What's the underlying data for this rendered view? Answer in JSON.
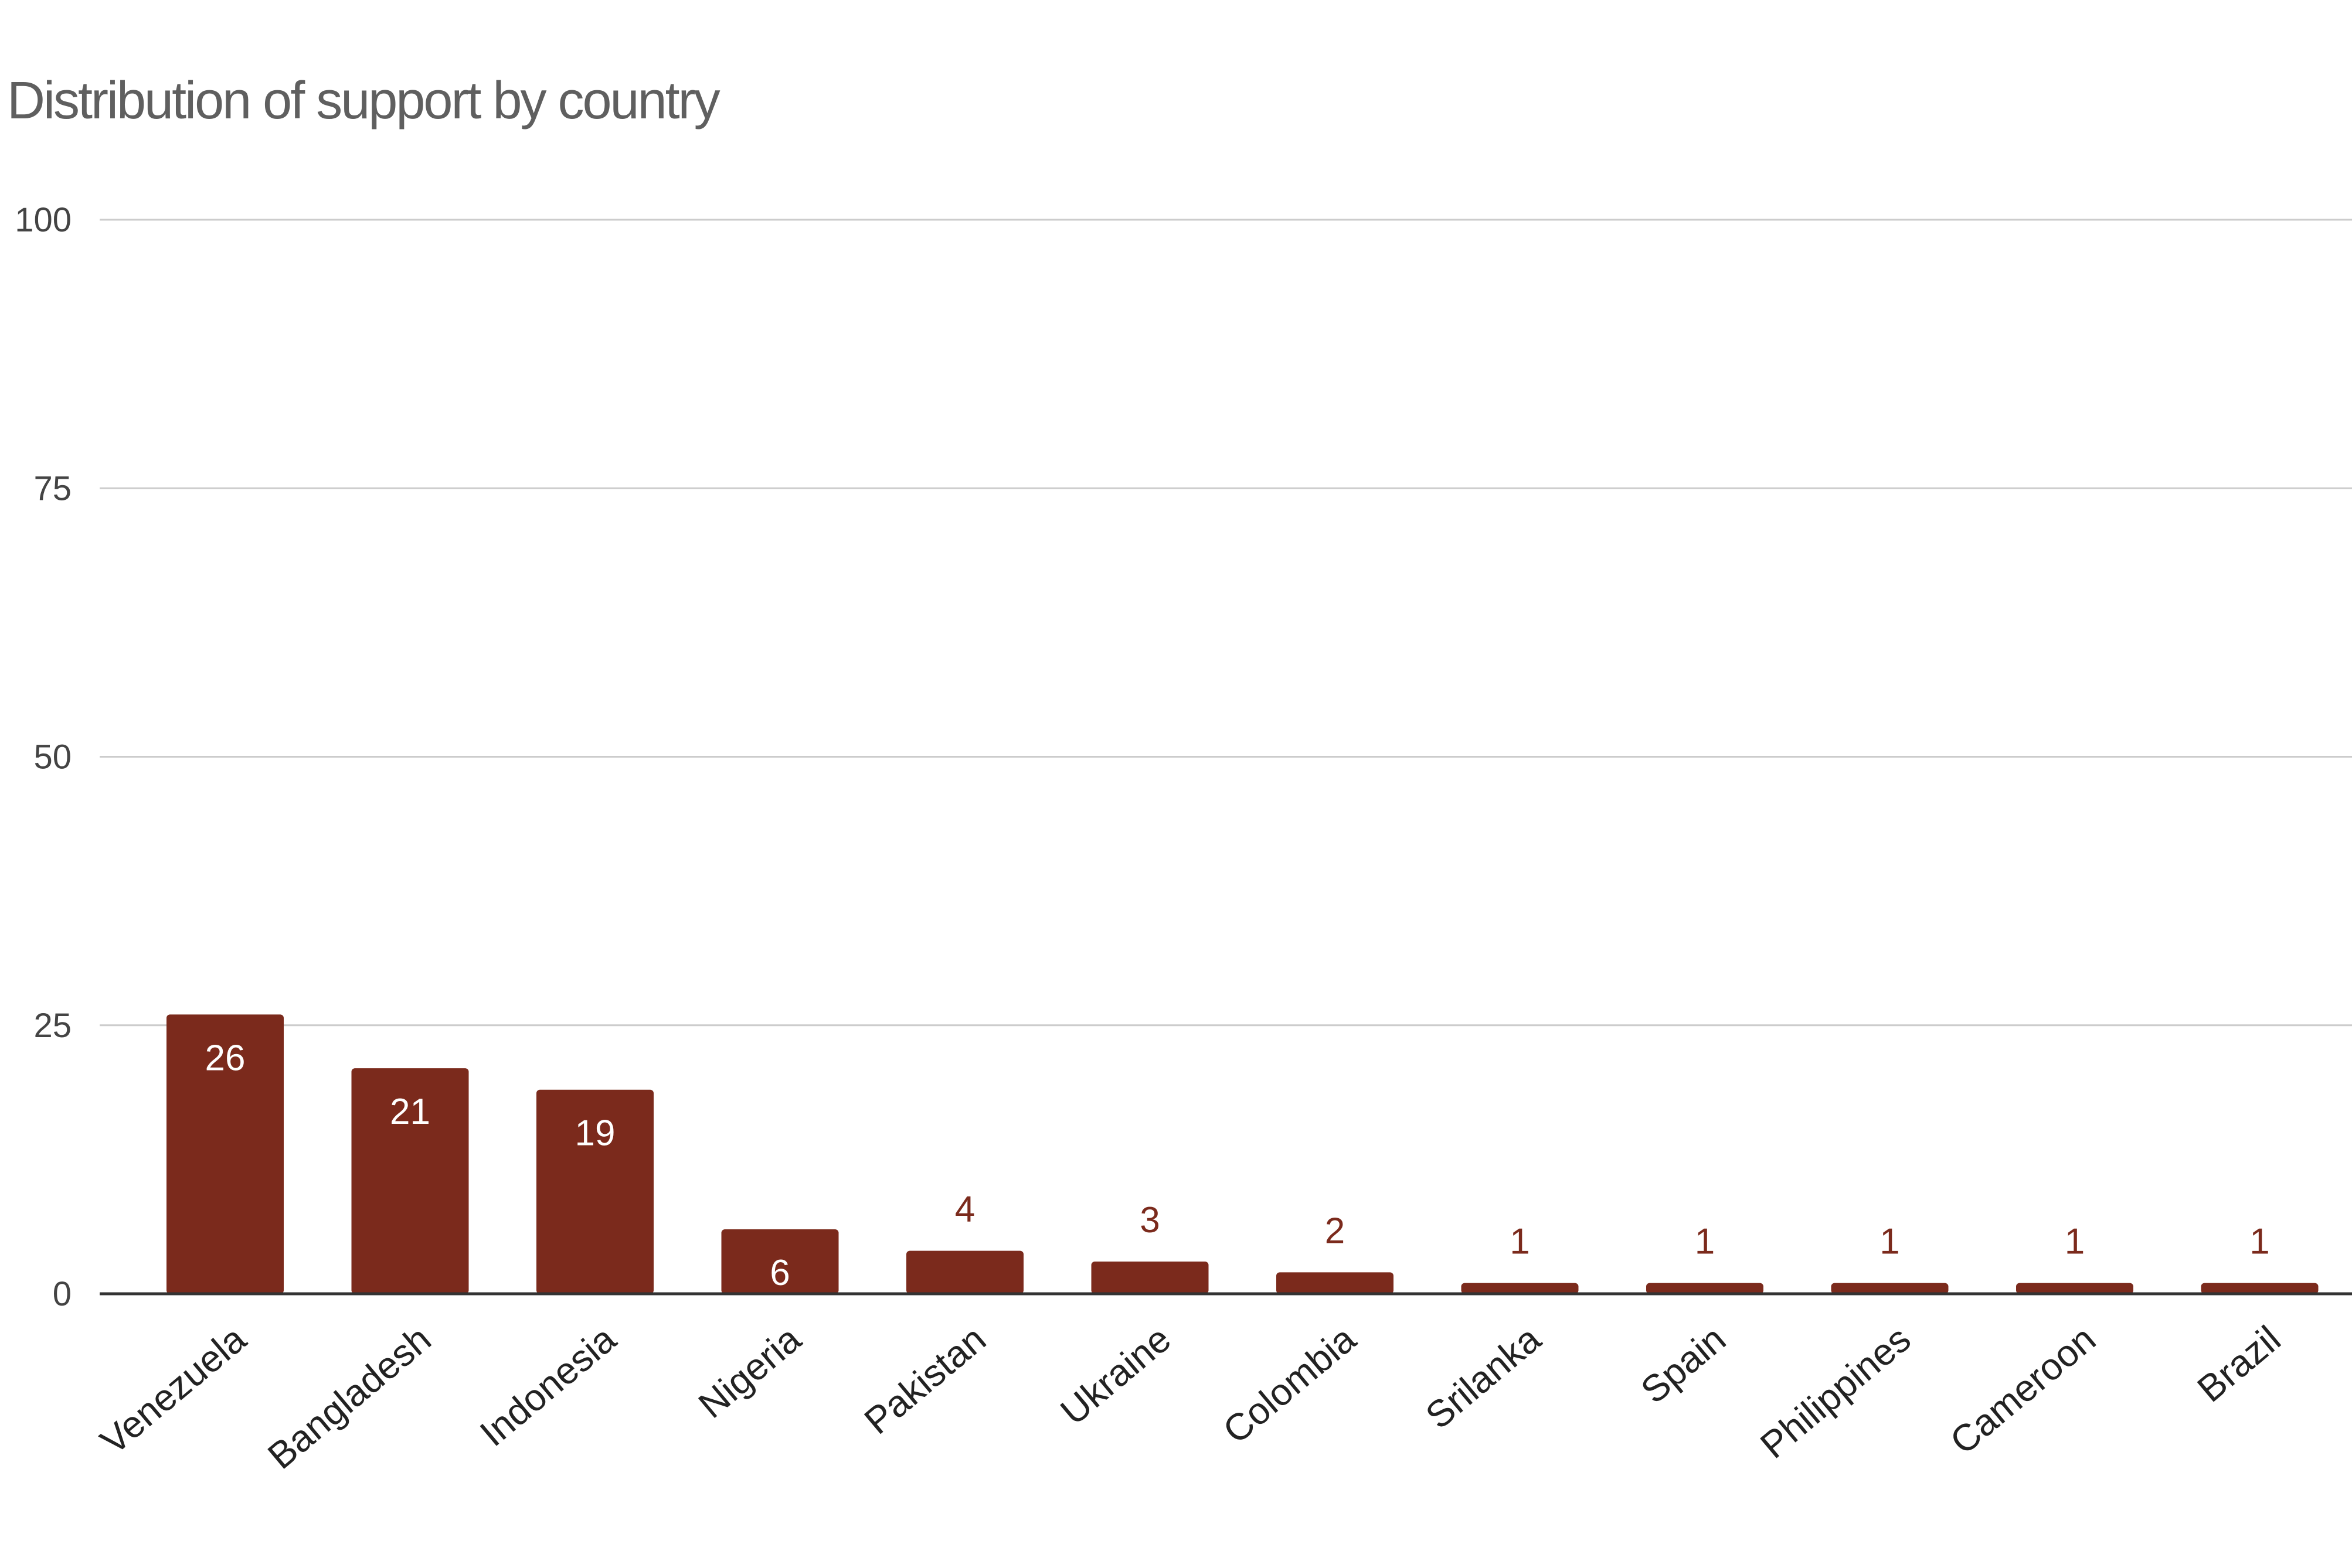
{
  "chart_data": {
    "type": "bar",
    "title": "Distribution of support by country",
    "xlabel": "",
    "ylabel": "",
    "categories": [
      "Venezuela",
      "Bangladesh",
      "Indonesia",
      "Nigeria",
      "Pakistan",
      "Ukraine",
      "Colombia",
      "Srilanka",
      "Spain",
      "Philippines",
      "Cameroon",
      "Brazil"
    ],
    "values": [
      26,
      21,
      19,
      6,
      4,
      3,
      2,
      1,
      1,
      1,
      1,
      1
    ],
    "ylim": [
      0,
      100
    ],
    "yticks": [
      0,
      25,
      50,
      75,
      100
    ],
    "grid": true,
    "legend": "none",
    "bar_color": "#7b2a1c",
    "label_inside_color": "#ffffff",
    "label_outside_color": "#7b2a1c"
  }
}
